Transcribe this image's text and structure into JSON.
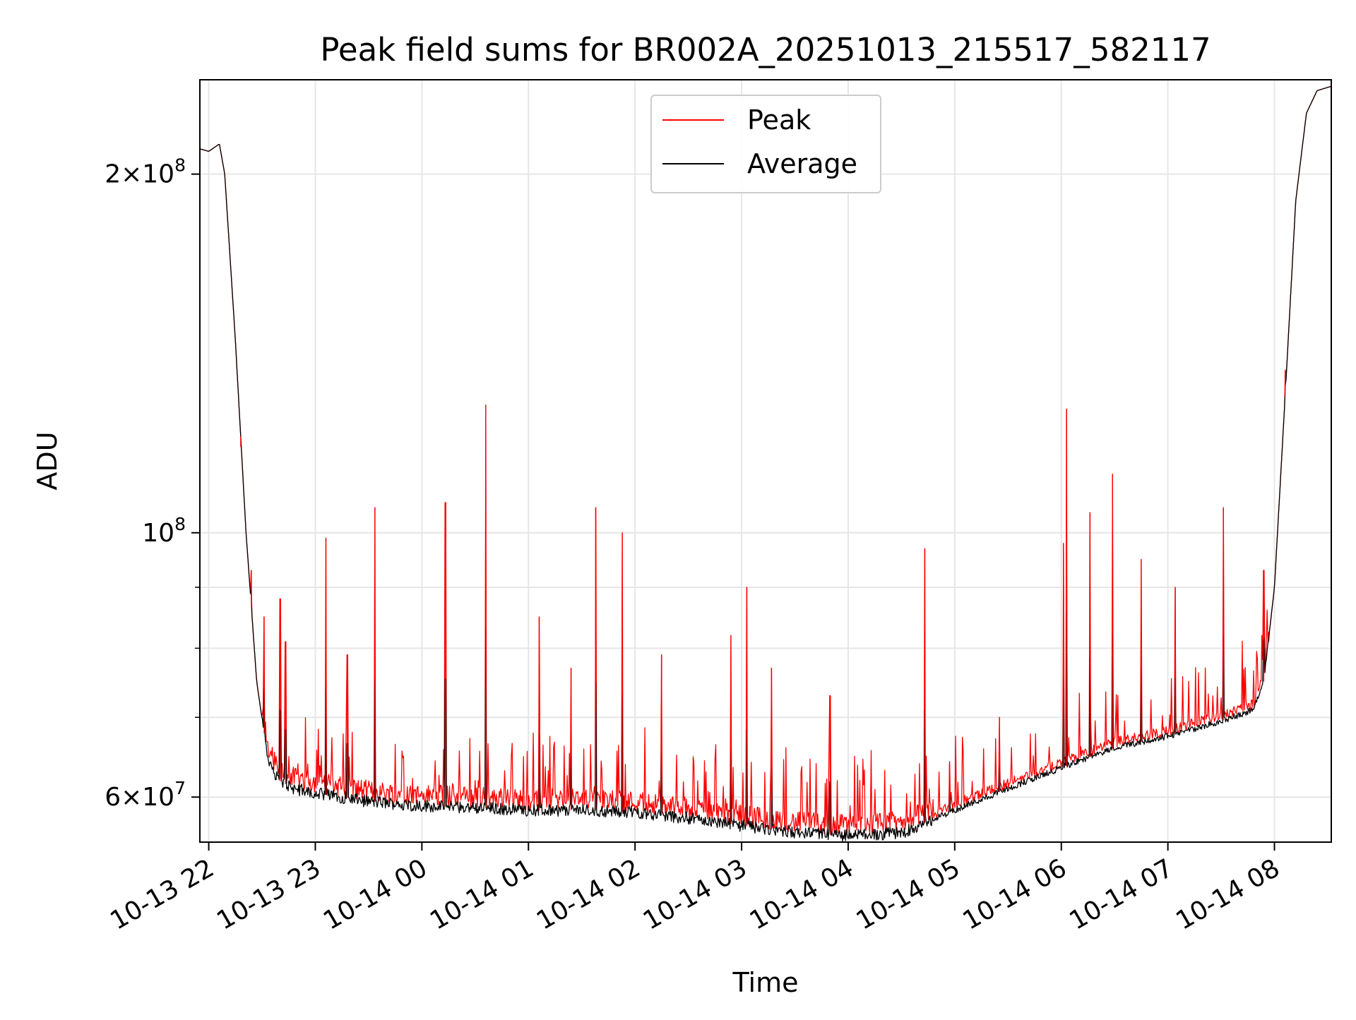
{
  "chart_data": {
    "type": "line",
    "title": "Peak field sums for BR002A_20251013_215517_582117",
    "xlabel": "Time",
    "ylabel": "ADU",
    "yscale": "log",
    "ylim": [
      55000000,
      240000000
    ],
    "xlim_hours": [
      -0.0833,
      10.5333
    ],
    "grid": true,
    "legend_position": "upper-center",
    "x_ticks": [
      {
        "hour": 0,
        "label": "10-13 22"
      },
      {
        "hour": 1,
        "label": "10-13 23"
      },
      {
        "hour": 2,
        "label": "10-14 00"
      },
      {
        "hour": 3,
        "label": "10-14 01"
      },
      {
        "hour": 4,
        "label": "10-14 02"
      },
      {
        "hour": 5,
        "label": "10-14 03"
      },
      {
        "hour": 6,
        "label": "10-14 04"
      },
      {
        "hour": 7,
        "label": "10-14 05"
      },
      {
        "hour": 8,
        "label": "10-14 06"
      },
      {
        "hour": 9,
        "label": "10-14 07"
      },
      {
        "hour": 10,
        "label": "10-14 08"
      }
    ],
    "y_ticks_major": [
      {
        "value": 60000000,
        "mantissa": "6",
        "base": "10",
        "exp": "7"
      },
      {
        "value": 100000000,
        "mantissa": "",
        "base": "10",
        "exp": "8"
      },
      {
        "value": 200000000,
        "mantissa": "2",
        "base": "10",
        "exp": "8"
      }
    ],
    "y_ticks_minor": [
      70000000,
      80000000,
      90000000
    ],
    "baseline_hours": [
      -0.0833,
      0.0,
      0.1,
      0.15,
      0.25,
      0.35,
      0.45,
      0.55,
      0.65,
      0.8,
      1.0,
      1.5,
      2.0,
      2.5,
      3.0,
      3.5,
      4.0,
      4.5,
      5.0,
      5.5,
      6.0,
      6.5,
      7.0,
      7.5,
      8.0,
      8.5,
      9.0,
      9.5,
      9.8,
      9.9,
      10.0,
      10.1,
      10.2,
      10.3,
      10.4,
      10.5333
    ],
    "baseline_values": [
      210000000,
      209000000,
      212000000,
      200000000,
      145000000,
      100000000,
      75000000,
      65000000,
      62000000,
      61000000,
      60500000,
      59500000,
      59000000,
      58800000,
      58500000,
      58500000,
      58300000,
      57600000,
      56800000,
      56000000,
      55700000,
      56000000,
      58500000,
      61000000,
      63500000,
      66000000,
      67500000,
      69500000,
      71000000,
      75000000,
      90000000,
      130000000,
      190000000,
      225000000,
      235000000,
      237000000
    ],
    "peak_spikes": [
      {
        "hour": 0.3,
        "value": 118000000
      },
      {
        "hour": 0.4,
        "value": 93000000
      },
      {
        "hour": 0.52,
        "value": 85000000
      },
      {
        "hour": 0.67,
        "value": 88000000
      },
      {
        "hour": 0.72,
        "value": 81000000
      },
      {
        "hour": 1.1,
        "value": 99000000
      },
      {
        "hour": 1.3,
        "value": 79000000
      },
      {
        "hour": 1.56,
        "value": 105000000
      },
      {
        "hour": 2.22,
        "value": 106000000
      },
      {
        "hour": 2.6,
        "value": 128000000
      },
      {
        "hour": 3.1,
        "value": 85000000
      },
      {
        "hour": 3.4,
        "value": 77000000
      },
      {
        "hour": 3.63,
        "value": 105000000
      },
      {
        "hour": 3.88,
        "value": 100000000
      },
      {
        "hour": 4.25,
        "value": 79000000
      },
      {
        "hour": 4.9,
        "value": 82000000
      },
      {
        "hour": 5.05,
        "value": 90000000
      },
      {
        "hour": 5.28,
        "value": 77000000
      },
      {
        "hour": 5.83,
        "value": 73000000
      },
      {
        "hour": 6.72,
        "value": 97000000
      },
      {
        "hour": 6.95,
        "value": 64000000
      },
      {
        "hour": 7.42,
        "value": 70000000
      },
      {
        "hour": 8.02,
        "value": 98000000
      },
      {
        "hour": 8.05,
        "value": 127000000
      },
      {
        "hour": 8.27,
        "value": 104000000
      },
      {
        "hour": 8.48,
        "value": 112000000
      },
      {
        "hour": 8.75,
        "value": 95000000
      },
      {
        "hour": 9.07,
        "value": 90000000
      },
      {
        "hour": 9.52,
        "value": 105000000
      },
      {
        "hour": 9.9,
        "value": 93000000
      },
      {
        "hour": 10.1,
        "value": 137000000
      }
    ],
    "series": [
      {
        "name": "Peak",
        "color": "#ff0000"
      },
      {
        "name": "Average",
        "color": "#000000"
      }
    ]
  }
}
